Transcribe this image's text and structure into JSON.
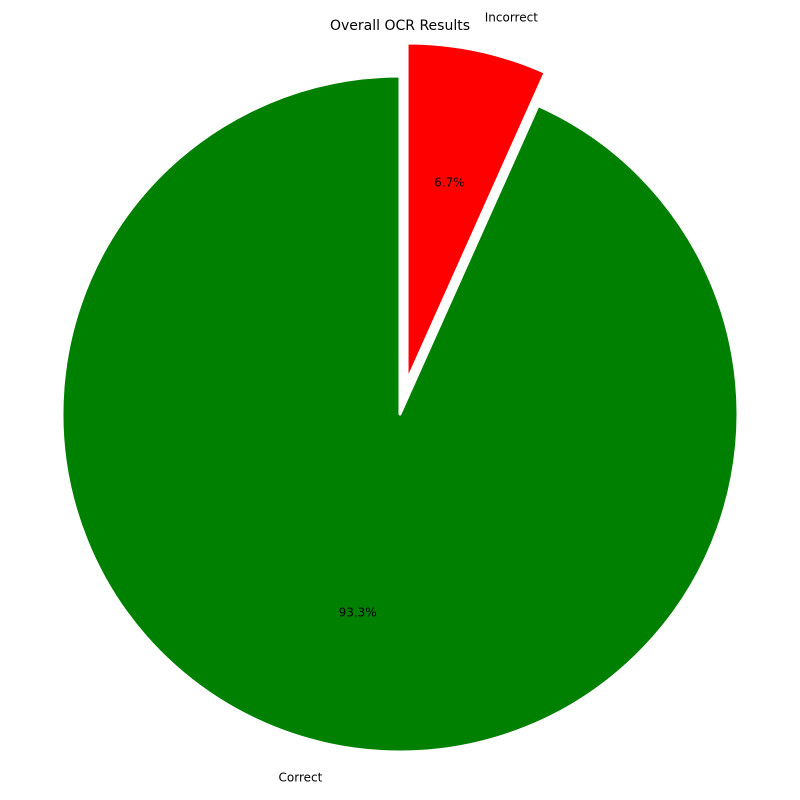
{
  "chart_data": {
    "type": "pie",
    "title": "Overall OCR Results",
    "slices": [
      {
        "label": "Correct",
        "value": 93.3,
        "pct_label": "93.3%",
        "color": "#008000"
      },
      {
        "label": "Incorrect",
        "value": 6.7,
        "pct_label": "6.7%",
        "color": "#ff0000"
      }
    ],
    "start_angle_deg": 90,
    "direction": "counterclockwise",
    "exploded": [
      "Incorrect"
    ],
    "slice_edge_color": "#ffffff"
  }
}
